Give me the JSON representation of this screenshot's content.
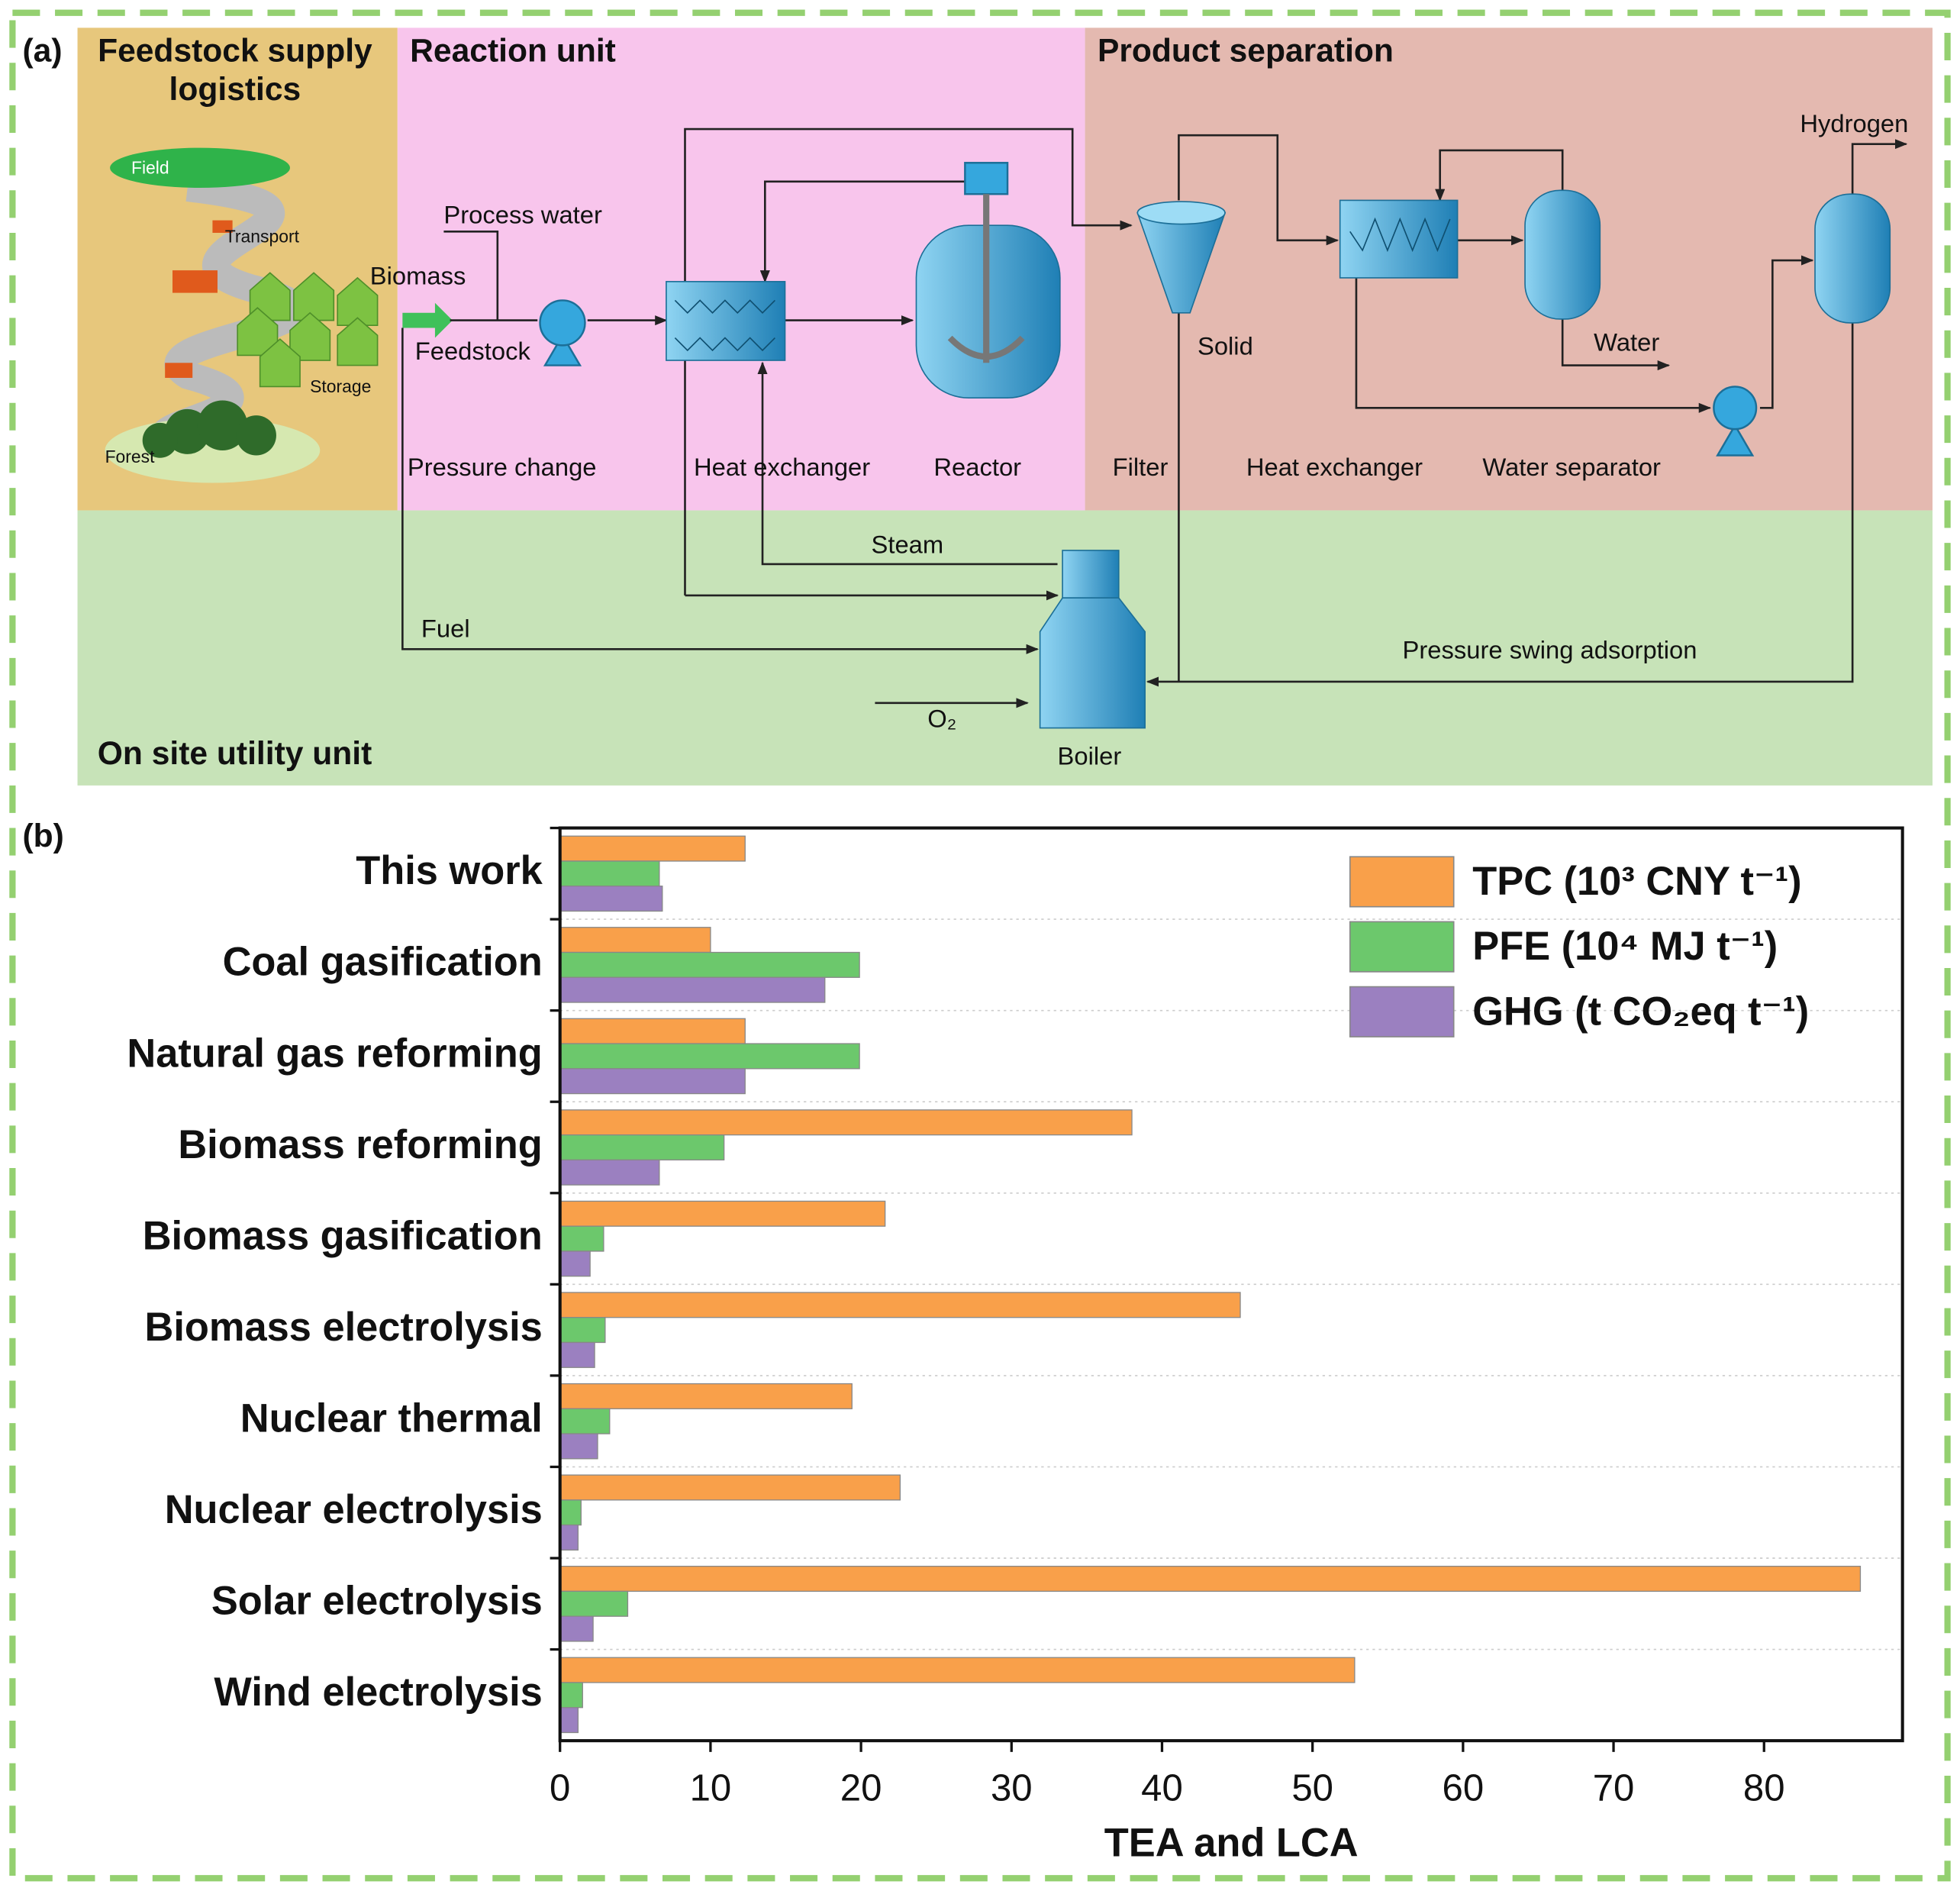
{
  "panel_a": {
    "label": "(a)",
    "headings": [
      "Feedstock supply",
      "logistics",
      "Reaction unit",
      "Product separation",
      "On site utility unit"
    ],
    "labels": [
      "Field",
      "Transport",
      "Storage",
      "Forest",
      "Biomass",
      "Feedstock",
      "Process water",
      "Pressure change",
      "Heat exchanger",
      "Reactor",
      "Filter",
      "Solid",
      "Heat exchanger",
      "Water separator",
      "Hydrogen",
      "Water",
      "Steam",
      "Fuel",
      "O₂",
      "Boiler",
      "Pressure swing adsorption"
    ]
  },
  "panel_b": {
    "label": "(b)"
  },
  "chart_data": {
    "type": "bar",
    "orientation": "horizontal",
    "categories": [
      "This work",
      "Coal gasification",
      "Natural gas reforming",
      "Biomass reforming",
      "Biomass gasification",
      "Biomass electrolysis",
      "Nuclear thermal",
      "Nuclear electrolysis",
      "Solar electrolysis",
      "Wind electrolysis"
    ],
    "series": [
      {
        "name": "TPC (10³ CNY t⁻¹)",
        "color": "#f9a04a",
        "values": [
          12.3,
          10.0,
          12.3,
          38.0,
          21.6,
          45.2,
          19.4,
          22.6,
          86.4,
          52.8
        ]
      },
      {
        "name": "PFE (10⁴ MJ t⁻¹)",
        "color": "#6cc86c",
        "values": [
          6.6,
          19.9,
          19.9,
          10.9,
          2.9,
          3.0,
          3.3,
          1.4,
          4.5,
          1.5
        ]
      },
      {
        "name": "GHG (t CO₂eq t⁻¹)",
        "color": "#9b80c0",
        "values": [
          6.8,
          17.6,
          12.3,
          6.6,
          2.0,
          2.3,
          2.5,
          1.2,
          2.2,
          1.2
        ]
      }
    ],
    "xlabel": "TEA and LCA",
    "xlim": [
      0,
      89.2
    ],
    "xticks": [
      0,
      10,
      20,
      30,
      40,
      50,
      60,
      70,
      80
    ],
    "grid": true,
    "legend": "upper right"
  }
}
